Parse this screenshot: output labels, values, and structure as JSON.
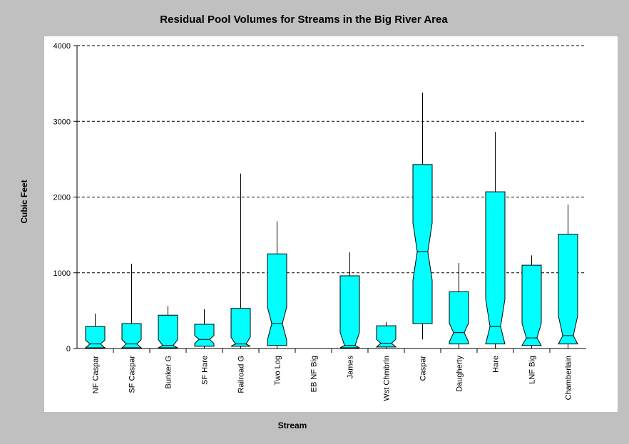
{
  "chart_data": {
    "type": "boxplot",
    "title": "Residual Pool Volumes for Streams in the Big River Area",
    "xlabel": "Stream",
    "ylabel": "Cubic Feet",
    "ylim": [
      0,
      4000
    ],
    "yticks": [
      0,
      1000,
      2000,
      3000,
      4000
    ],
    "grid": true,
    "box_color": "#00ffff",
    "categories": [
      "NF Caspar",
      "SF Caspar",
      "Bunker G",
      "SF Hare",
      "Railroad G",
      "Two Log",
      "EB NF Big",
      "James",
      "Wst Chmbrln",
      "Caspar",
      "Daugherty",
      "Hare",
      "LNF Big",
      "Chamberlain"
    ],
    "boxes": [
      {
        "name": "NF Caspar",
        "whisker_low": 0,
        "q1": 10,
        "median": 60,
        "q3": 290,
        "whisker_high": 460
      },
      {
        "name": "SF Caspar",
        "whisker_low": 0,
        "q1": 10,
        "median": 60,
        "q3": 330,
        "whisker_high": 1120
      },
      {
        "name": "Bunker G",
        "whisker_low": 0,
        "q1": 10,
        "median": 40,
        "q3": 440,
        "whisker_high": 560
      },
      {
        "name": "SF Hare",
        "whisker_low": 0,
        "q1": 30,
        "median": 120,
        "q3": 320,
        "whisker_high": 520
      },
      {
        "name": "Railroad G",
        "whisker_low": 0,
        "q1": 30,
        "median": 60,
        "q3": 530,
        "whisker_high": 2310
      },
      {
        "name": "Two Log",
        "whisker_low": 0,
        "q1": 40,
        "median": 330,
        "q3": 1250,
        "whisker_high": 1680
      },
      {
        "name": "EB NF Big",
        "empty": true
      },
      {
        "name": "James",
        "whisker_low": 0,
        "q1": 10,
        "median": 40,
        "q3": 960,
        "whisker_high": 1270
      },
      {
        "name": "Wst Chmbrln",
        "whisker_low": 0,
        "q1": 20,
        "median": 70,
        "q3": 300,
        "whisker_high": 350
      },
      {
        "name": "Caspar",
        "whisker_low": 120,
        "q1": 330,
        "median": 1280,
        "q3": 2430,
        "whisker_high": 3380
      },
      {
        "name": "Daugherty",
        "whisker_low": 0,
        "q1": 60,
        "median": 210,
        "q3": 750,
        "whisker_high": 1130
      },
      {
        "name": "Hare",
        "whisker_low": 0,
        "q1": 60,
        "median": 290,
        "q3": 2070,
        "whisker_high": 2860
      },
      {
        "name": "LNF Big",
        "whisker_low": 0,
        "q1": 40,
        "median": 140,
        "q3": 1100,
        "whisker_high": 1230
      },
      {
        "name": "Chamberlain",
        "whisker_low": 0,
        "q1": 60,
        "median": 170,
        "q3": 1510,
        "whisker_high": 1900
      }
    ]
  }
}
